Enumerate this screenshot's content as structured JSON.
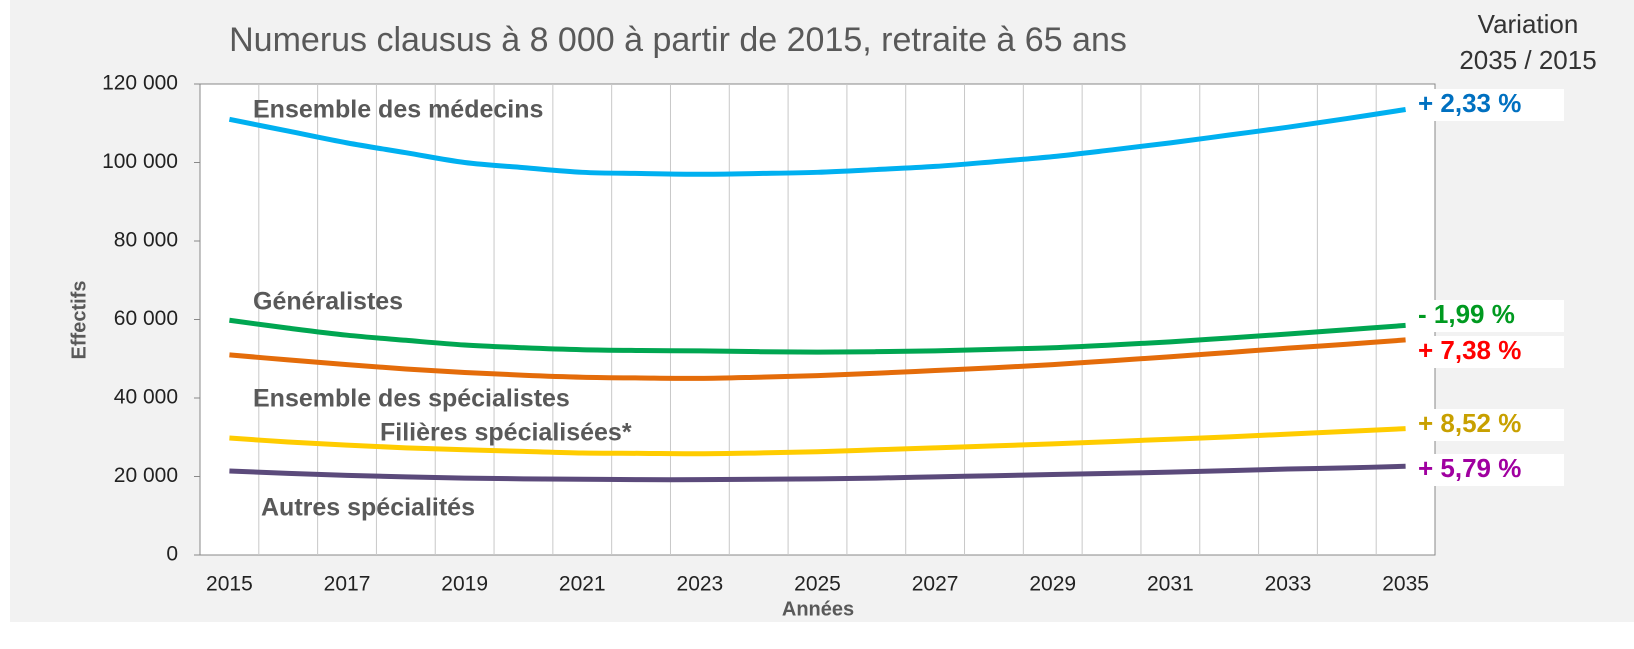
{
  "chart_data": {
    "type": "line",
    "title": "Numerus clausus à 8 000 à partir de 2015, retraite à 65 ans",
    "variation_header": [
      "Variation",
      "2035 / 2015"
    ],
    "x_label": "Années",
    "y_label": "Effectifs",
    "categories": [
      "2015",
      null,
      "2017",
      null,
      "2019",
      null,
      "2021",
      null,
      "2023",
      null,
      "2025",
      null,
      "2027",
      null,
      "2029",
      null,
      "2031",
      null,
      "2033",
      null,
      "2035"
    ],
    "ylim": [
      0,
      120000
    ],
    "yticks": [
      {
        "value": 0,
        "label": "0"
      },
      {
        "value": 20000,
        "label": "20 000"
      },
      {
        "value": 40000,
        "label": "40 000"
      },
      {
        "value": 60000,
        "label": "60 000"
      },
      {
        "value": 80000,
        "label": "80 000"
      },
      {
        "value": 100000,
        "label": "100 000"
      },
      {
        "value": 120000,
        "label": "120 000"
      }
    ],
    "grid": true,
    "series": [
      {
        "name": "Ensemble des médecins",
        "color": "#00b0f0",
        "variation": "+ 2,33 %",
        "variation_color": "#0070c0",
        "values": [
          111000,
          108000,
          105000,
          102500,
          100000,
          98700,
          97500,
          97200,
          97000,
          97200,
          97500,
          98200,
          99000,
          100200,
          101500,
          103200,
          105000,
          107000,
          109000,
          111200,
          113500
        ]
      },
      {
        "name": "Généralistes",
        "color": "#00a651",
        "variation": "- 1,99 %",
        "variation_color": "#009a20",
        "values": [
          59800,
          57800,
          56000,
          54700,
          53500,
          52800,
          52300,
          52100,
          52000,
          51800,
          51700,
          51800,
          52000,
          52400,
          52800,
          53500,
          54300,
          55300,
          56300,
          57400,
          58500
        ]
      },
      {
        "name": "Ensemble des spécialistes",
        "color": "#e46c0a",
        "variation": "+ 7,38 %",
        "variation_color": "#ff0000",
        "values": [
          51000,
          49700,
          48500,
          47400,
          46500,
          45800,
          45300,
          45100,
          45000,
          45300,
          45700,
          46300,
          47000,
          47700,
          48500,
          49500,
          50500,
          51600,
          52700,
          53700,
          54800
        ]
      },
      {
        "name": "Filières spécialisées*",
        "color": "#ffcc00",
        "variation": "+ 8,52 %",
        "variation_color": "#c8a000",
        "values": [
          29800,
          28800,
          28000,
          27300,
          26800,
          26400,
          26000,
          25900,
          25800,
          26000,
          26300,
          26800,
          27300,
          27800,
          28300,
          28900,
          29500,
          30100,
          30800,
          31500,
          32200
        ]
      },
      {
        "name": "Autres spécialités",
        "color": "#5b4a7b",
        "variation": "+ 5,79 %",
        "variation_color": "#a000a0",
        "values": [
          21400,
          20800,
          20300,
          19900,
          19600,
          19400,
          19300,
          19200,
          19200,
          19300,
          19400,
          19600,
          19900,
          20200,
          20500,
          20800,
          21100,
          21500,
          21900,
          22200,
          22600
        ]
      }
    ]
  }
}
